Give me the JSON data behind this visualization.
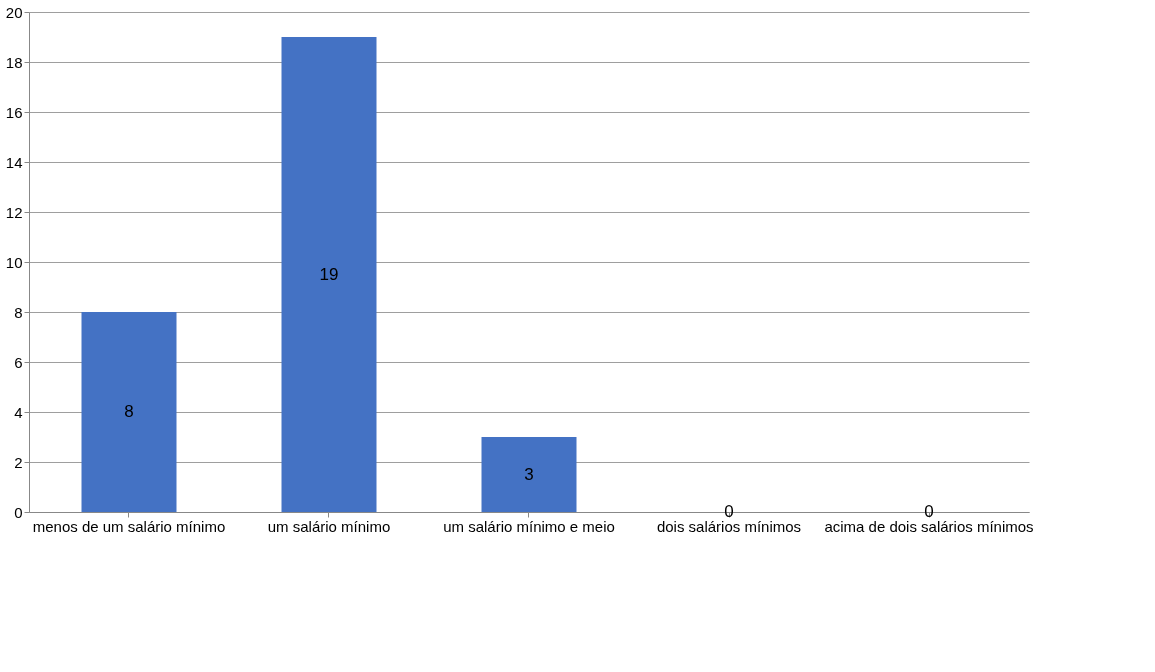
{
  "chart_data": {
    "type": "bar",
    "categories": [
      "menos de um salário mínimo",
      "um salário mínimo",
      "um salário mínimo e meio",
      "dois salários mínimos",
      "acima de dois salários mínimos"
    ],
    "values": [
      8,
      19,
      3,
      0,
      0
    ],
    "color": "#4472c4",
    "ylim": [
      0,
      20
    ],
    "yticks": [
      0,
      2,
      4,
      6,
      8,
      10,
      12,
      14,
      16,
      18,
      20
    ],
    "grid": "y",
    "data_labels": true
  }
}
